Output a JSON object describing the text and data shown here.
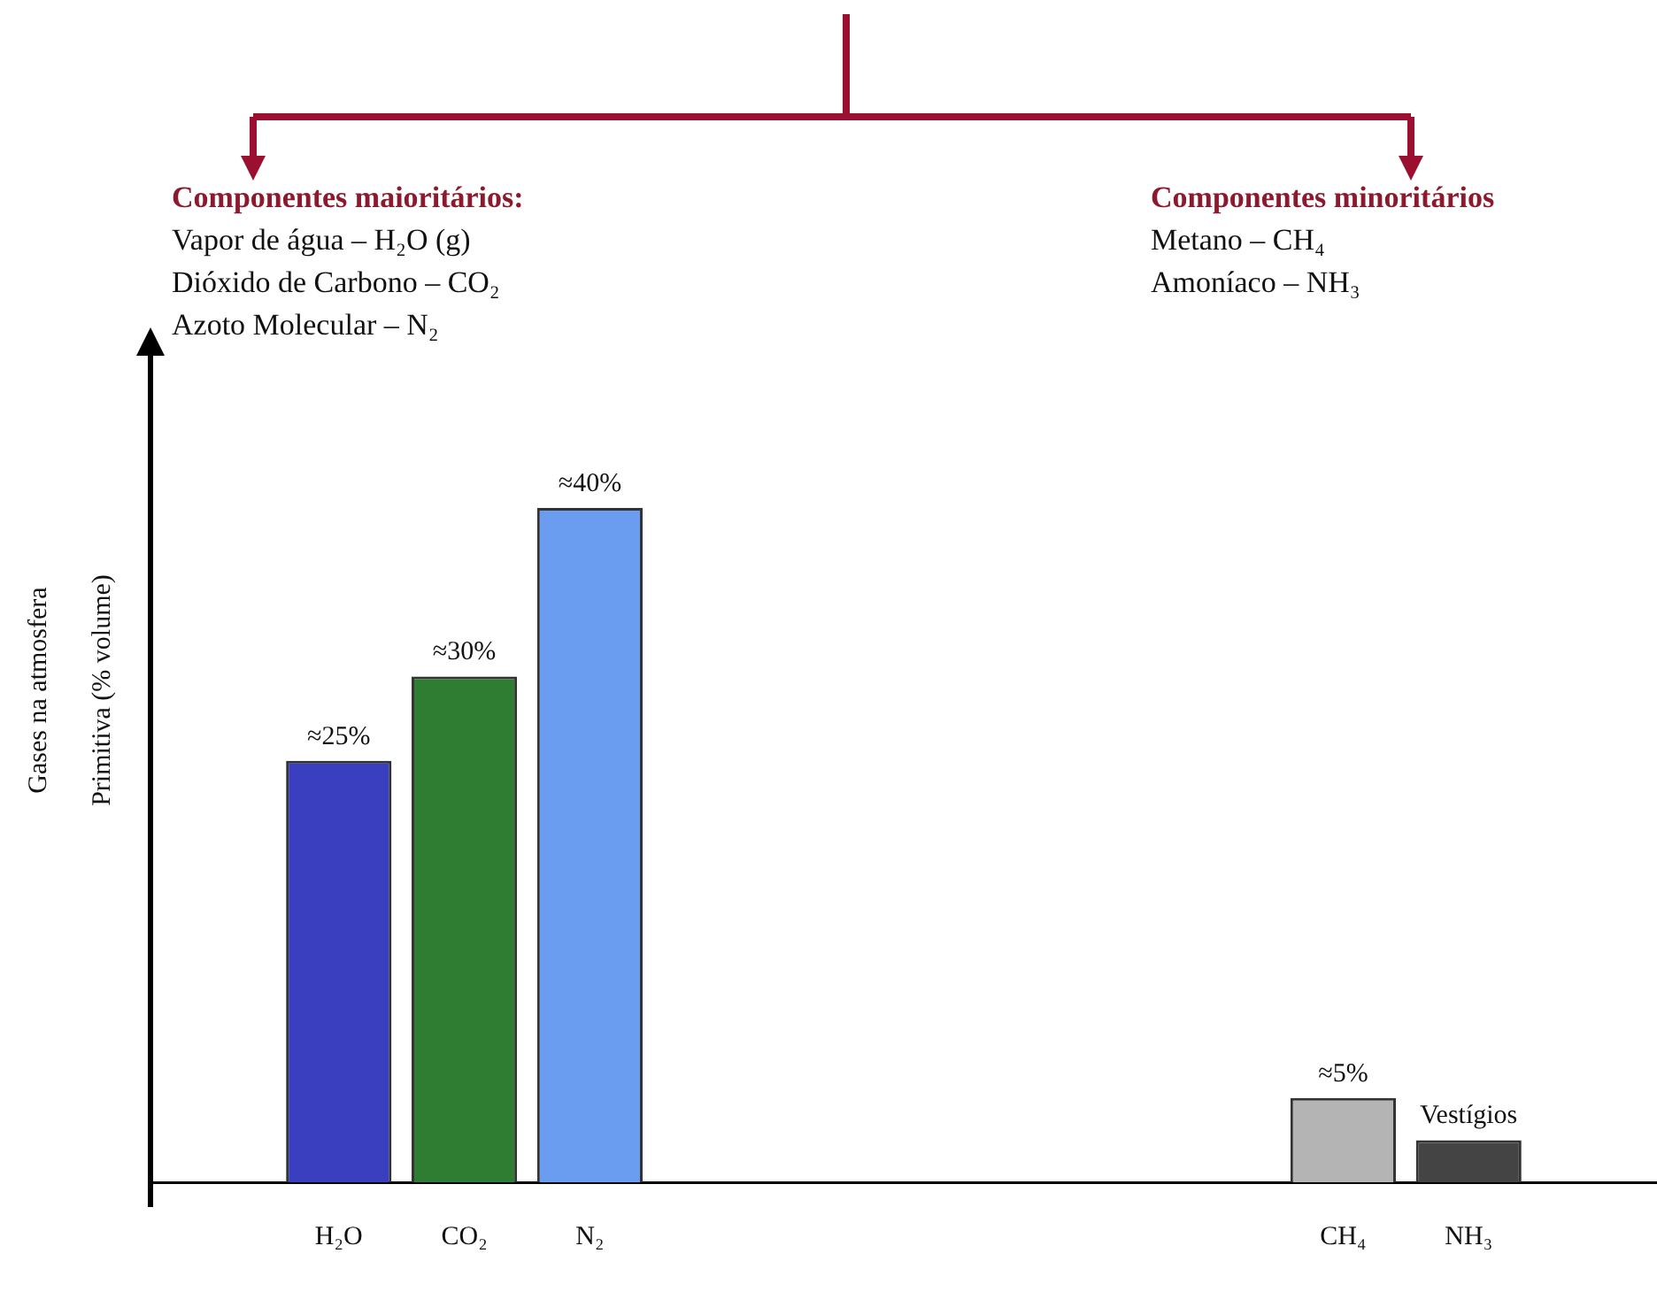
{
  "chart_data": {
    "type": "bar",
    "ylabel": "Gases na atmosfera Primitiva (% volume)",
    "categories": [
      null,
      "H₂O",
      "CO₂",
      "N₂",
      null,
      null,
      null,
      null,
      null,
      "CH₄",
      "NH₃",
      null
    ],
    "values": [
      null,
      25,
      30,
      40,
      null,
      null,
      null,
      null,
      null,
      5,
      2.5,
      null
    ],
    "colors": [
      "#ffffff",
      "#3a3fc0",
      "#2e7d32",
      "#6a9cf0",
      "#ffffff",
      "#ffffff",
      "#ffffff",
      "#ffffff",
      "#ffffff",
      "#b4b4b4",
      "#444444",
      "#ffffff"
    ],
    "value_labels": [
      null,
      "≈25%",
      "≈30%",
      "≈40%",
      null,
      null,
      null,
      null,
      null,
      "≈5%",
      "Vestígios",
      null
    ],
    "annotations": [
      "Componentes maioritários:\nVapor de água – H₂O (g)\nDióxido de Carbono – CO₂\nAzoto Molecular – N₂",
      "Componentes minoritários\nMetano – CH₄\nAmoníaco – NH₃"
    ],
    "legend": false,
    "grid": false
  }
}
